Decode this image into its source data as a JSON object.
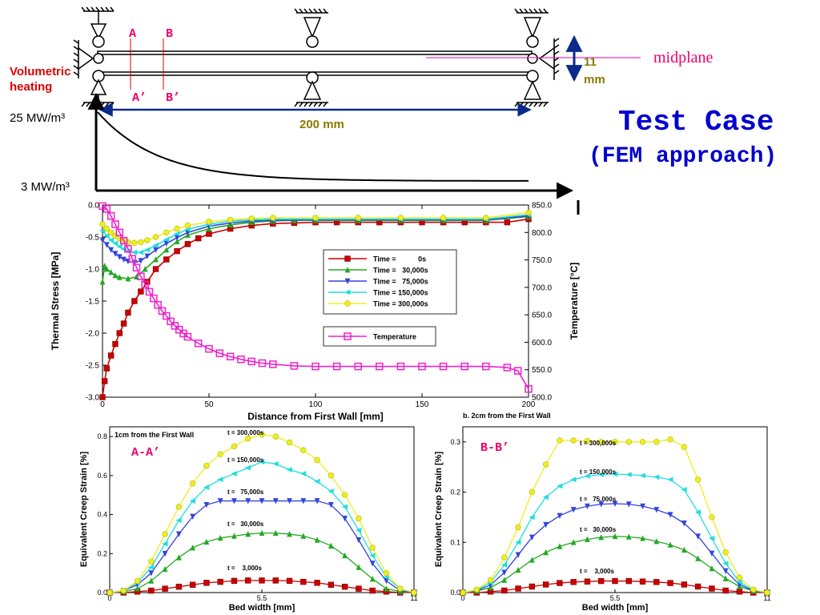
{
  "header": {
    "title": "Test Case",
    "subtitle": "(FEM approach)",
    "midplane_label": "midplane",
    "thickness_label_1": "11",
    "thickness_label_2": "mm",
    "length_label": "200 mm",
    "heating_label_1": "Volumetric",
    "heating_label_2": "heating",
    "heating_high": "25 MW/m³",
    "heating_low": "3 MW/m³",
    "section_a": "A",
    "section_b": "B",
    "section_a_prime": "A’",
    "section_b_prime": "B’",
    "colors": {
      "title": "#0000cc",
      "red_label": "#dd0000",
      "magenta_label": "#ee0066",
      "olive": "#8a7a00",
      "arrow_blue": "#0a2a8a"
    }
  },
  "chart_data": [
    {
      "type": "line",
      "xlabel": "Distance from First Wall [mm]",
      "ylabel": "Thermal Stress [MPa]",
      "y2label": "Temperature [°C]",
      "xlim": [
        0,
        200
      ],
      "ylim": [
        -3.0,
        0.0
      ],
      "y2lim": [
        500,
        850
      ],
      "xticks": [
        "0",
        "50",
        "100",
        "150",
        "200"
      ],
      "yticks": [
        "0.0",
        "-0.5",
        "-1.0",
        "-1.5",
        "-2.0",
        "-2.5",
        "-3.0"
      ],
      "y2ticks": [
        "850.0",
        "800.0",
        "750.0",
        "700.0",
        "650.0",
        "600.0",
        "550.0",
        "500.0"
      ],
      "legend_position": "center-right",
      "series": [
        {
          "name": "Time =           0s",
          "color": "#cc0000",
          "marker": "square",
          "x": [
            0,
            1,
            2,
            4,
            6,
            8,
            10,
            12,
            15,
            18,
            21,
            25,
            30,
            35,
            40,
            45,
            50,
            60,
            70,
            80,
            90,
            100,
            110,
            120,
            130,
            140,
            150,
            160,
            170,
            180,
            190,
            200
          ],
          "y": [
            -3.0,
            -2.75,
            -2.55,
            -2.35,
            -2.17,
            -2.0,
            -1.85,
            -1.68,
            -1.5,
            -1.35,
            -1.2,
            -1.0,
            -0.85,
            -0.72,
            -0.61,
            -0.52,
            -0.45,
            -0.37,
            -0.32,
            -0.29,
            -0.28,
            -0.27,
            -0.27,
            -0.27,
            -0.27,
            -0.27,
            -0.27,
            -0.27,
            -0.27,
            -0.27,
            -0.27,
            -0.22
          ]
        },
        {
          "name": "Time =   30,000s",
          "color": "#22aa22",
          "marker": "triangle-up",
          "x": [
            0,
            1,
            2,
            4,
            6,
            8,
            12,
            16,
            20,
            25,
            30,
            35,
            40,
            50,
            60,
            70,
            80,
            90,
            100,
            120,
            140,
            160,
            180,
            200
          ],
          "y": [
            -1.2,
            -0.95,
            -1.0,
            -1.05,
            -1.1,
            -1.13,
            -1.15,
            -1.12,
            -1.0,
            -0.85,
            -0.7,
            -0.57,
            -0.47,
            -0.37,
            -0.31,
            -0.27,
            -0.25,
            -0.24,
            -0.24,
            -0.24,
            -0.24,
            -0.24,
            -0.24,
            -0.18
          ]
        },
        {
          "name": "Time =   75,000s",
          "color": "#3344dd",
          "marker": "triangle-down",
          "x": [
            0,
            2,
            4,
            6,
            8,
            10,
            12,
            15,
            18,
            21,
            25,
            30,
            35,
            40,
            50,
            60,
            70,
            80,
            100,
            120,
            140,
            160,
            180,
            200
          ],
          "y": [
            -0.55,
            -0.62,
            -0.7,
            -0.76,
            -0.81,
            -0.85,
            -0.88,
            -0.9,
            -0.87,
            -0.8,
            -0.7,
            -0.6,
            -0.51,
            -0.43,
            -0.33,
            -0.28,
            -0.25,
            -0.24,
            -0.23,
            -0.23,
            -0.23,
            -0.23,
            -0.23,
            -0.17
          ]
        },
        {
          "name": "Time = 150,000s",
          "color": "#22dddd",
          "marker": "triangle-left",
          "x": [
            0,
            2,
            4,
            6,
            8,
            10,
            12,
            15,
            18,
            21,
            25,
            30,
            35,
            40,
            50,
            60,
            70,
            80,
            100,
            120,
            140,
            160,
            180,
            200
          ],
          "y": [
            -0.4,
            -0.48,
            -0.55,
            -0.6,
            -0.65,
            -0.69,
            -0.72,
            -0.74,
            -0.74,
            -0.7,
            -0.63,
            -0.54,
            -0.45,
            -0.38,
            -0.3,
            -0.25,
            -0.23,
            -0.22,
            -0.22,
            -0.22,
            -0.22,
            -0.22,
            -0.22,
            -0.15
          ]
        },
        {
          "name": "Time = 300,000s",
          "color": "#eeee22",
          "marker": "circle",
          "x": [
            0,
            2,
            4,
            6,
            8,
            10,
            12,
            15,
            18,
            21,
            25,
            30,
            35,
            40,
            50,
            60,
            70,
            80,
            100,
            120,
            140,
            160,
            180,
            200
          ],
          "y": [
            -0.3,
            -0.37,
            -0.43,
            -0.48,
            -0.52,
            -0.56,
            -0.58,
            -0.59,
            -0.58,
            -0.55,
            -0.5,
            -0.43,
            -0.37,
            -0.32,
            -0.26,
            -0.23,
            -0.21,
            -0.2,
            -0.2,
            -0.2,
            -0.2,
            -0.2,
            -0.2,
            -0.12
          ]
        },
        {
          "name": "Temperature",
          "color": "#ee22cc",
          "marker": "square-open",
          "axis": "y2",
          "x": [
            0,
            2,
            4,
            6,
            8,
            10,
            12,
            14,
            16,
            18,
            20,
            22,
            24,
            26,
            28,
            30,
            32,
            34,
            36,
            38,
            40,
            45,
            50,
            55,
            60,
            65,
            70,
            75,
            80,
            90,
            100,
            110,
            120,
            130,
            140,
            150,
            160,
            170,
            180,
            190,
            195,
            200
          ],
          "y": [
            848,
            843,
            830,
            815,
            800,
            785,
            770,
            752,
            736,
            720,
            705,
            692,
            680,
            668,
            657,
            648,
            638,
            630,
            623,
            616,
            610,
            598,
            588,
            580,
            574,
            569,
            565,
            562,
            560,
            557,
            556,
            556,
            556,
            556,
            556,
            556,
            556,
            556,
            556,
            554,
            548,
            515
          ]
        }
      ]
    },
    {
      "type": "line",
      "title": "1cm from the First Wall",
      "annotation": "A-A’",
      "xlabel": "Bed width [mm]",
      "ylabel": "Equivalent Creep Strain [%]",
      "xlim": [
        0,
        11
      ],
      "ylim": [
        0,
        0.85
      ],
      "xticks": [
        "0",
        "5.5",
        "11"
      ],
      "yticks": [
        "0.0",
        "0.2",
        "0.4",
        "0.6",
        "0.8"
      ],
      "x": [
        0,
        0.5,
        1,
        1.5,
        2,
        2.5,
        3,
        3.5,
        4,
        4.5,
        5,
        5.5,
        6,
        6.5,
        7,
        7.5,
        8,
        8.5,
        9,
        9.5,
        10,
        10.5,
        11
      ],
      "series": [
        {
          "name": "t =    3,000s",
          "color": "#cc0000",
          "marker": "square",
          "values": [
            0.0,
            0.0,
            0.005,
            0.01,
            0.02,
            0.03,
            0.04,
            0.05,
            0.055,
            0.06,
            0.062,
            0.062,
            0.062,
            0.06,
            0.055,
            0.05,
            0.04,
            0.03,
            0.02,
            0.01,
            0.005,
            0.0,
            0.0
          ]
        },
        {
          "name": "t =   30,000s",
          "color": "#22aa22",
          "marker": "triangle-up",
          "values": [
            0.0,
            0.005,
            0.02,
            0.06,
            0.12,
            0.18,
            0.23,
            0.26,
            0.28,
            0.29,
            0.3,
            0.305,
            0.305,
            0.3,
            0.29,
            0.27,
            0.24,
            0.19,
            0.13,
            0.07,
            0.02,
            0.005,
            0.0
          ]
        },
        {
          "name": "t =   75,000s",
          "color": "#3344dd",
          "marker": "triangle-down",
          "values": [
            0.0,
            0.01,
            0.04,
            0.1,
            0.2,
            0.3,
            0.39,
            0.45,
            0.47,
            0.47,
            0.47,
            0.47,
            0.47,
            0.47,
            0.47,
            0.47,
            0.45,
            0.38,
            0.27,
            0.15,
            0.06,
            0.01,
            0.0
          ]
        },
        {
          "name": "t = 150,000s",
          "color": "#22dddd",
          "marker": "triangle-left",
          "values": [
            0.0,
            0.01,
            0.05,
            0.13,
            0.25,
            0.37,
            0.47,
            0.54,
            0.58,
            0.61,
            0.64,
            0.67,
            0.66,
            0.63,
            0.61,
            0.57,
            0.52,
            0.44,
            0.32,
            0.19,
            0.08,
            0.02,
            0.0
          ]
        },
        {
          "name": "t = 300,000s",
          "color": "#eeee22",
          "marker": "circle",
          "values": [
            0.0,
            0.01,
            0.06,
            0.16,
            0.3,
            0.44,
            0.56,
            0.65,
            0.71,
            0.75,
            0.79,
            0.81,
            0.8,
            0.77,
            0.73,
            0.68,
            0.6,
            0.5,
            0.38,
            0.23,
            0.1,
            0.02,
            0.0
          ]
        }
      ]
    },
    {
      "type": "line",
      "title": "b. 2cm from the First Wall",
      "annotation": "B-B’",
      "xlabel": "Bed width [mm]",
      "ylabel": "Equivalent Creep Strain [%]",
      "xlim": [
        0,
        11
      ],
      "ylim": [
        0,
        0.33
      ],
      "xticks": [
        "0",
        "5.5",
        "11"
      ],
      "yticks": [
        "0.0",
        "0.1",
        "0.2",
        "0.3"
      ],
      "x": [
        0,
        0.5,
        1,
        1.5,
        2,
        2.5,
        3,
        3.5,
        4,
        4.5,
        5,
        5.5,
        6,
        6.5,
        7,
        7.5,
        8,
        8.5,
        9,
        9.5,
        10,
        10.5,
        11
      ],
      "series": [
        {
          "name": "t =    3,000s",
          "color": "#cc0000",
          "marker": "square",
          "values": [
            0.0,
            0.0,
            0.002,
            0.004,
            0.008,
            0.012,
            0.016,
            0.019,
            0.021,
            0.022,
            0.023,
            0.023,
            0.023,
            0.022,
            0.021,
            0.019,
            0.016,
            0.012,
            0.008,
            0.004,
            0.002,
            0.0,
            0.0
          ]
        },
        {
          "name": "t =   30,000s",
          "color": "#22aa22",
          "marker": "triangle-up",
          "values": [
            0.0,
            0.003,
            0.01,
            0.025,
            0.045,
            0.065,
            0.08,
            0.092,
            0.1,
            0.106,
            0.11,
            0.112,
            0.111,
            0.108,
            0.102,
            0.095,
            0.085,
            0.068,
            0.048,
            0.028,
            0.012,
            0.003,
            0.0
          ]
        },
        {
          "name": "t =   75,000s",
          "color": "#3344dd",
          "marker": "triangle-down",
          "values": [
            0.0,
            0.004,
            0.015,
            0.04,
            0.075,
            0.11,
            0.135,
            0.153,
            0.165,
            0.172,
            0.176,
            0.177,
            0.176,
            0.172,
            0.165,
            0.155,
            0.138,
            0.112,
            0.078,
            0.043,
            0.016,
            0.004,
            0.0
          ]
        },
        {
          "name": "t = 150,000s",
          "color": "#22dddd",
          "marker": "triangle-left",
          "values": [
            0.0,
            0.005,
            0.02,
            0.055,
            0.1,
            0.15,
            0.19,
            0.212,
            0.225,
            0.232,
            0.235,
            0.236,
            0.235,
            0.233,
            0.23,
            0.225,
            0.205,
            0.16,
            0.108,
            0.058,
            0.021,
            0.005,
            0.0
          ]
        },
        {
          "name": "t = 300,000s",
          "color": "#eeee22",
          "marker": "circle",
          "values": [
            0.0,
            0.006,
            0.025,
            0.07,
            0.13,
            0.2,
            0.255,
            0.303,
            0.303,
            0.302,
            0.3,
            0.3,
            0.3,
            0.3,
            0.3,
            0.305,
            0.29,
            0.225,
            0.15,
            0.08,
            0.03,
            0.006,
            0.0
          ]
        }
      ]
    }
  ]
}
